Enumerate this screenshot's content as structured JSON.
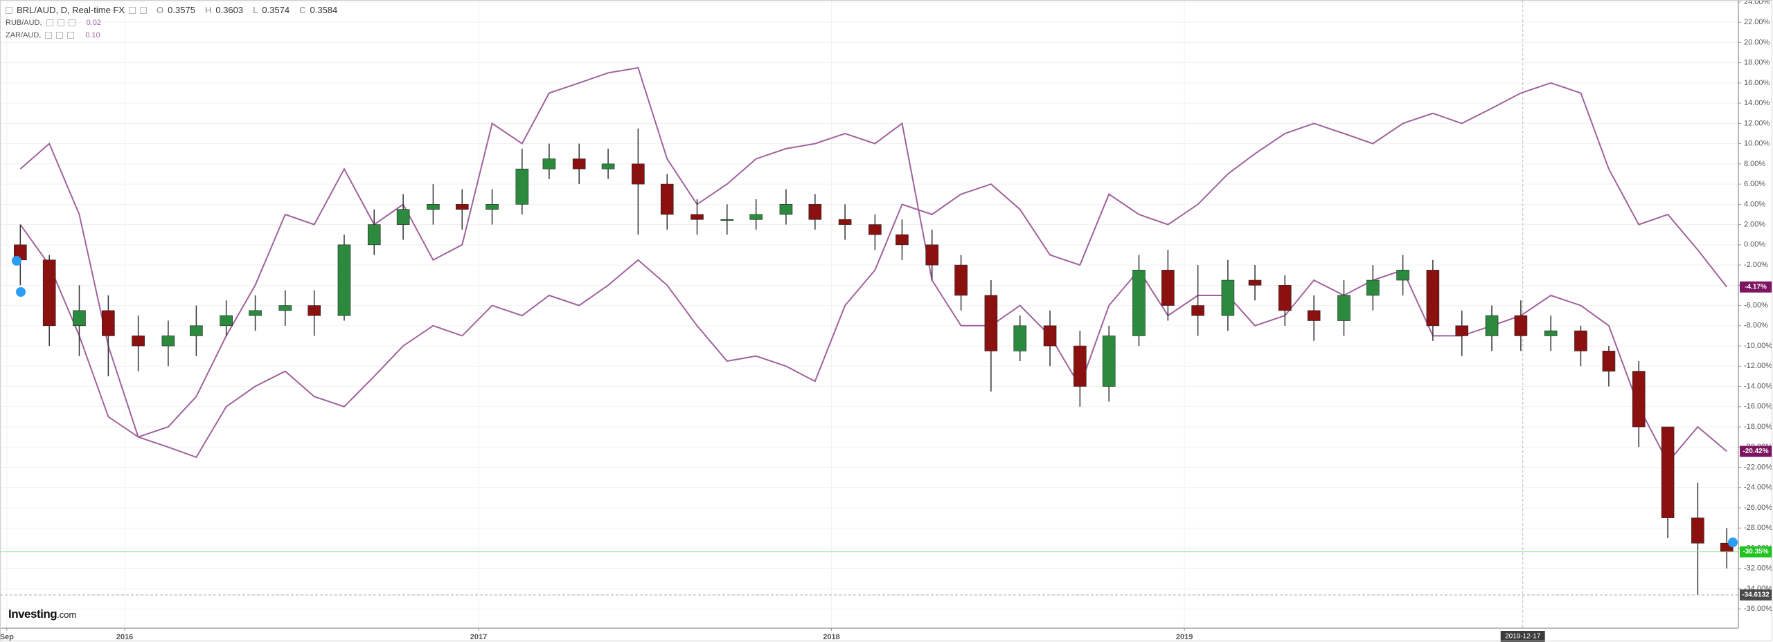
{
  "chart_data": {
    "type": "candlestick",
    "x": [
      "2015-09-15",
      "2015-10-15",
      "2015-11-15",
      "2015-12-15",
      "2016-01-15",
      "2016-02-15",
      "2016-03-15",
      "2016-04-15",
      "2016-05-15",
      "2016-06-15",
      "2016-07-15",
      "2016-08-15",
      "2016-09-15",
      "2016-10-15",
      "2016-11-15",
      "2016-12-15",
      "2017-01-15",
      "2017-02-15",
      "2017-03-15",
      "2017-04-15",
      "2017-05-15",
      "2017-06-15",
      "2017-07-15",
      "2017-08-15",
      "2017-09-15",
      "2017-10-15",
      "2017-11-15",
      "2017-12-15",
      "2018-01-15",
      "2018-02-15",
      "2018-03-15",
      "2018-04-15",
      "2018-05-15",
      "2018-06-15",
      "2018-07-15",
      "2018-08-15",
      "2018-09-15",
      "2018-10-15",
      "2018-11-15",
      "2018-12-15",
      "2019-01-15",
      "2019-02-15",
      "2019-03-15",
      "2019-04-15",
      "2019-05-15",
      "2019-06-15",
      "2019-07-15",
      "2019-08-15",
      "2019-09-15",
      "2019-10-15",
      "2019-11-15",
      "2019-12-15",
      "2020-01-15",
      "2020-02-15",
      "2020-03-15",
      "2020-04-15",
      "2020-05-15",
      "2020-06-15",
      "2020-07-15"
    ],
    "series": [
      {
        "name": "BRL/AUD, D, Real-time FX",
        "type": "candlestick",
        "up_color": "#2b8a3e",
        "down_color": "#8b1010",
        "ohlc_readout": [
          {
            "label": "O",
            "value": 0.3575
          },
          {
            "label": "H",
            "value": 0.3603
          },
          {
            "label": "L",
            "value": 0.3574
          },
          {
            "label": "C",
            "value": 0.3584
          }
        ],
        "open": [
          0,
          -1.5,
          -8,
          -6.5,
          -9,
          -10,
          -9,
          -8,
          -7,
          -6.5,
          -6,
          -7,
          0,
          2,
          3.5,
          4,
          3.5,
          4,
          7.5,
          8.5,
          7.5,
          8,
          6,
          3,
          2.5,
          2.5,
          3,
          4,
          2.5,
          2,
          1,
          0,
          -2,
          -5,
          -10.5,
          -8,
          -10,
          -14,
          -9,
          -2.5,
          -6,
          -7,
          -3.5,
          -4,
          -6.5,
          -7.5,
          -5,
          -3.5,
          -2.5,
          -8,
          -9,
          -7,
          -9,
          -8.5,
          -10.5,
          -12.5,
          -18,
          -27,
          -29.5
        ],
        "high": [
          2,
          -1,
          -4,
          -5,
          -7,
          -7.5,
          -6,
          -5.5,
          -5,
          -4.5,
          -4.5,
          1,
          3.5,
          5,
          6,
          5.5,
          5.5,
          9.5,
          10,
          10,
          9.5,
          11.5,
          7,
          4.5,
          4,
          4.5,
          5.5,
          5,
          4,
          3,
          2.5,
          1.5,
          -1,
          -3.5,
          -7,
          -6.5,
          -8.5,
          -8,
          -1,
          -0.5,
          -2,
          -1.5,
          -2,
          -3,
          -5,
          -3.5,
          -2,
          -1,
          -1.5,
          -6.5,
          -6,
          -5.5,
          -7,
          -8,
          -10,
          -11.5,
          -18.5,
          -23.5,
          -28
        ],
        "low": [
          -4,
          -10,
          -11,
          -13,
          -12.5,
          -12,
          -11,
          -9,
          -8.5,
          -8,
          -9,
          -7.5,
          -1,
          0.5,
          2,
          1.5,
          2,
          3,
          6.5,
          6,
          6.5,
          1,
          1.5,
          1,
          1,
          1.5,
          2,
          1.5,
          0.5,
          -0.5,
          -1.5,
          -3.5,
          -6.5,
          -14.5,
          -11.5,
          -12,
          -16,
          -15.5,
          -10,
          -7.5,
          -9,
          -8.5,
          -5.5,
          -8,
          -9.5,
          -9,
          -6.5,
          -5,
          -9.5,
          -11,
          -10.5,
          -10.5,
          -10.5,
          -12,
          -14,
          -20,
          -29,
          -34.6132,
          -32
        ],
        "close": [
          -1.5,
          -8,
          -6.5,
          -9,
          -10,
          -9,
          -8,
          -7,
          -6.5,
          -6,
          -7,
          0,
          2,
          3.5,
          4,
          3.5,
          4,
          7.5,
          8.5,
          7.5,
          8,
          6,
          3,
          2.5,
          2.5,
          3,
          4,
          2.5,
          2,
          1,
          0,
          -2,
          -5,
          -10.5,
          -8,
          -10,
          -14,
          -9,
          -2.5,
          -6,
          -7,
          -3.5,
          -4,
          -6.5,
          -7.5,
          -5,
          -3.5,
          -2.5,
          -8,
          -9,
          -7,
          -9,
          -8.5,
          -10.5,
          -12.5,
          -18,
          -27,
          -29.5,
          -30.35
        ]
      },
      {
        "name": "RUB/AUD,",
        "type": "line",
        "color": "#a0629c",
        "legend_value": "0.02",
        "values": [
          7.5,
          10,
          3,
          -10,
          -19,
          -20,
          -21,
          -16,
          -14,
          -12.5,
          -15,
          -16,
          -13,
          -10,
          -8,
          -9,
          -6,
          -7,
          -5,
          -6,
          -4,
          -1.5,
          -4,
          -8,
          -11.5,
          -11,
          -12,
          -13.5,
          -6,
          -2.5,
          4,
          3,
          5,
          6,
          3.5,
          -1,
          -2,
          5,
          3,
          2,
          4,
          7,
          9,
          11,
          12,
          11,
          10,
          12,
          13,
          12,
          13.5,
          15,
          16,
          15,
          7.5,
          2,
          3,
          -0.5,
          -4.17
        ]
      },
      {
        "name": "ZAR/AUD,",
        "type": "line",
        "color": "#a0629c",
        "legend_value": "0.10",
        "values": [
          2,
          -2,
          -9,
          -17,
          -19,
          -18,
          -15,
          -9,
          -4,
          3,
          2,
          7.5,
          2,
          4,
          -1.5,
          0,
          12,
          10,
          15,
          16,
          17,
          17.5,
          8.5,
          4,
          6,
          8.5,
          9.5,
          10,
          11,
          10,
          12,
          -3.5,
          -8,
          -8,
          -6,
          -9,
          -14,
          -6,
          -2.5,
          -7,
          -5,
          -5,
          -8,
          -7,
          -3.5,
          -5,
          -3.5,
          -2.5,
          -9,
          -9,
          -8,
          -7,
          -5,
          -6,
          -8,
          -16,
          -21.5,
          -18,
          -20.42
        ]
      }
    ],
    "xlim": [
      "2015-08-25",
      "2020-07-27"
    ],
    "xticks": [
      {
        "value": "2015-09-01",
        "label": "Sep"
      },
      {
        "value": "2016-01-01",
        "label": "2016"
      },
      {
        "value": "2017-01-01",
        "label": "2017"
      },
      {
        "value": "2018-01-01",
        "label": "2018"
      },
      {
        "value": "2019-01-01",
        "label": "2019"
      }
    ],
    "ylim": [
      -37.9,
      24.2
    ],
    "yticks": [
      {
        "value": 24,
        "label": "24.00%"
      },
      {
        "value": 22,
        "label": "22.00%"
      },
      {
        "value": 20,
        "label": "20.00%"
      },
      {
        "value": 18,
        "label": "18.00%"
      },
      {
        "value": 16,
        "label": "16.00%"
      },
      {
        "value": 14,
        "label": "14.00%"
      },
      {
        "value": 12,
        "label": "12.00%"
      },
      {
        "value": 10,
        "label": "10.00%"
      },
      {
        "value": 8,
        "label": "8.00%"
      },
      {
        "value": 6,
        "label": "6.00%"
      },
      {
        "value": 4,
        "label": "4.00%"
      },
      {
        "value": 2,
        "label": "2.00%"
      },
      {
        "value": 0,
        "label": "0.00%"
      },
      {
        "value": -2,
        "label": "-2.00%"
      },
      {
        "value": -4,
        "label": "-4.00%"
      },
      {
        "value": -6,
        "label": "-6.00%"
      },
      {
        "value": -8,
        "label": "-8.00%"
      },
      {
        "value": -10,
        "label": "-10.00%"
      },
      {
        "value": -12,
        "label": "-12.00%"
      },
      {
        "value": -14,
        "label": "-14.00%"
      },
      {
        "value": -16,
        "label": "-16.00%"
      },
      {
        "value": -18,
        "label": "-18.00%"
      },
      {
        "value": -20,
        "label": "-20.00%"
      },
      {
        "value": -22,
        "label": "-22.00%"
      },
      {
        "value": -24,
        "label": "-24.00%"
      },
      {
        "value": -26,
        "label": "-26.00%"
      },
      {
        "value": -28,
        "label": "-28.00%"
      },
      {
        "value": -30,
        "label": "-30.00%"
      },
      {
        "value": -32,
        "label": "-32.00%"
      },
      {
        "value": -34,
        "label": "-34.00%"
      },
      {
        "value": -36,
        "label": "-36.00%"
      }
    ],
    "grid": true,
    "crosshair": "2019-12-17",
    "price_labels": [
      {
        "value": -4.17,
        "label": "-4.17%",
        "color": "#7d1462"
      },
      {
        "value": -20.42,
        "label": "-20.42%",
        "color": "#7d1462"
      },
      {
        "value": -30.35,
        "label": "-30.35%",
        "color": "#1fc41f",
        "line": "solid"
      },
      {
        "value": -34.6132,
        "label": "-34.6132",
        "color": "#4a4a4a",
        "line": "dashed"
      }
    ],
    "logo": {
      "name": "Investing",
      "suffix": ".com"
    }
  }
}
